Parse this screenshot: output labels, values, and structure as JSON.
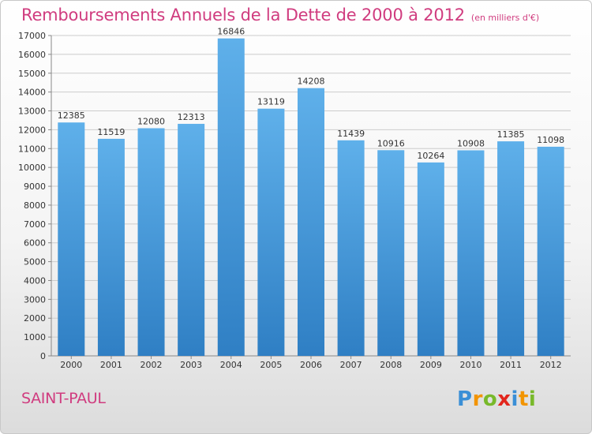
{
  "header": {
    "title": "Remboursements Annuels de la Dette de 2000 à 2012",
    "subtitle": "(en milliers d'€)"
  },
  "footer": {
    "commune": "SAINT-PAUL",
    "brand": "Proxiti"
  },
  "chart_data": {
    "type": "bar",
    "title": "Remboursements Annuels de la Dette de 2000 à 2012",
    "subtitle": "(en milliers d'€)",
    "categories": [
      "2000",
      "2001",
      "2002",
      "2003",
      "2004",
      "2005",
      "2006",
      "2007",
      "2008",
      "2009",
      "2010",
      "2011",
      "2012"
    ],
    "values": [
      12385,
      11519,
      12080,
      12313,
      16846,
      13119,
      14208,
      11439,
      10916,
      10264,
      10908,
      11385,
      11098
    ],
    "data_labels": [
      "12385",
      "11519",
      "12080",
      "12313",
      "16846",
      "13119",
      "14208",
      "11439",
      "10916",
      "10264",
      "10908",
      "11385",
      "11098"
    ],
    "ylim": [
      0,
      17000
    ],
    "yticks": [
      0,
      1000,
      2000,
      3000,
      4000,
      5000,
      6000,
      7000,
      8000,
      9000,
      10000,
      11000,
      12000,
      13000,
      14000,
      15000,
      16000,
      17000
    ],
    "grid": true,
    "legend": "none",
    "colors": {
      "bar_top": "#5fb0ea",
      "bar_bottom": "#2f7fc4",
      "grid": "#cccccc",
      "title": "#d03c7f"
    }
  }
}
